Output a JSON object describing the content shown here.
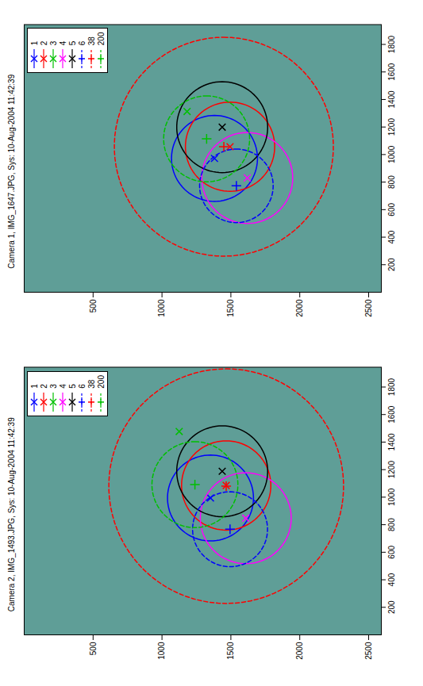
{
  "chart_data": [
    {
      "type": "scatter",
      "title": "Camera 1, IMG_1647.JPG, Sys: 10-Aug-2004 11:42:39",
      "xlim": [
        0,
        1944
      ],
      "ylim": [
        2592,
        0
      ],
      "xticks": [
        200,
        400,
        600,
        800,
        1000,
        1200,
        1400,
        1600,
        1800
      ],
      "yticks": [
        500,
        1000,
        1500,
        2000,
        2500
      ],
      "legend": "top-right",
      "series": [
        {
          "name": "1",
          "color": "#0000ff",
          "marker": "x",
          "line_style": "solid",
          "x": [
            972
          ],
          "y": [
            1381
          ],
          "radius": [
            312
          ]
        },
        {
          "name": "2",
          "color": "#ff0000",
          "marker": "x",
          "line_style": "solid",
          "x": [
            1057
          ],
          "y": [
            1494
          ],
          "radius": [
            324
          ]
        },
        {
          "name": "3",
          "color": "#00c000",
          "marker": "x",
          "line_style": "solid",
          "x": [
            1313
          ],
          "y": [
            1182
          ],
          "radius": [
            null
          ]
        },
        {
          "name": "4",
          "color": "#ff00ff",
          "marker": "x",
          "line_style": "solid",
          "x": [
            830
          ],
          "y": [
            1619
          ],
          "radius": [
            330
          ]
        },
        {
          "name": "5",
          "color": "#000000",
          "marker": "x",
          "line_style": "solid",
          "x": [
            1199
          ],
          "y": [
            1437
          ],
          "radius": [
            330
          ]
        },
        {
          "name": "6",
          "color": "#0000ff",
          "marker": "+",
          "line_style": "dashed",
          "x": [
            773
          ],
          "y": [
            1540
          ],
          "radius": [
            267
          ]
        },
        {
          "name": "38",
          "color": "#ff0000",
          "marker": "+",
          "line_style": "dashed",
          "x": [
            1057
          ],
          "y": [
            1449
          ],
          "radius": [
            795
          ]
        },
        {
          "name": "200",
          "color": "#00c000",
          "marker": "+",
          "line_style": "dashed",
          "x": [
            1114
          ],
          "y": [
            1324
          ],
          "radius": [
            312
          ]
        }
      ]
    },
    {
      "type": "scatter",
      "title": "Camera 2, IMG_1493.JPG, Sys: 10-Aug-2004 11:42:39",
      "xlim": [
        0,
        1944
      ],
      "ylim": [
        2592,
        0
      ],
      "xticks": [
        200,
        400,
        600,
        800,
        1000,
        1200,
        1400,
        1600,
        1800
      ],
      "yticks": [
        500,
        1000,
        1500,
        2000,
        2500
      ],
      "legend": "top-right",
      "series": [
        {
          "name": "1",
          "color": "#0000ff",
          "marker": "x",
          "line_style": "solid",
          "x": [
            994
          ],
          "y": [
            1352
          ],
          "radius": [
            312
          ]
        },
        {
          "name": "2",
          "color": "#ff0000",
          "marker": "x",
          "line_style": "solid",
          "x": [
            1085
          ],
          "y": [
            1466
          ],
          "radius": [
            324
          ]
        },
        {
          "name": "3",
          "color": "#00c000",
          "marker": "x",
          "line_style": "solid",
          "x": [
            1477
          ],
          "y": [
            1125
          ],
          "radius": [
            null
          ]
        },
        {
          "name": "4",
          "color": "#ff00ff",
          "marker": "x",
          "line_style": "solid",
          "x": [
            847
          ],
          "y": [
            1608
          ],
          "radius": [
            330
          ]
        },
        {
          "name": "5",
          "color": "#000000",
          "marker": "x",
          "line_style": "solid",
          "x": [
            1188
          ],
          "y": [
            1437
          ],
          "radius": [
            330
          ]
        },
        {
          "name": "6",
          "color": "#0000ff",
          "marker": "+",
          "line_style": "dashed",
          "x": [
            767
          ],
          "y": [
            1494
          ],
          "radius": [
            272
          ]
        },
        {
          "name": "38",
          "color": "#ff0000",
          "marker": "+",
          "line_style": "dashed",
          "x": [
            1080
          ],
          "y": [
            1466
          ],
          "radius": [
            852
          ]
        },
        {
          "name": "200",
          "color": "#00c000",
          "marker": "+",
          "line_style": "dashed",
          "x": [
            1091
          ],
          "y": [
            1239
          ],
          "radius": [
            312
          ]
        }
      ]
    }
  ]
}
